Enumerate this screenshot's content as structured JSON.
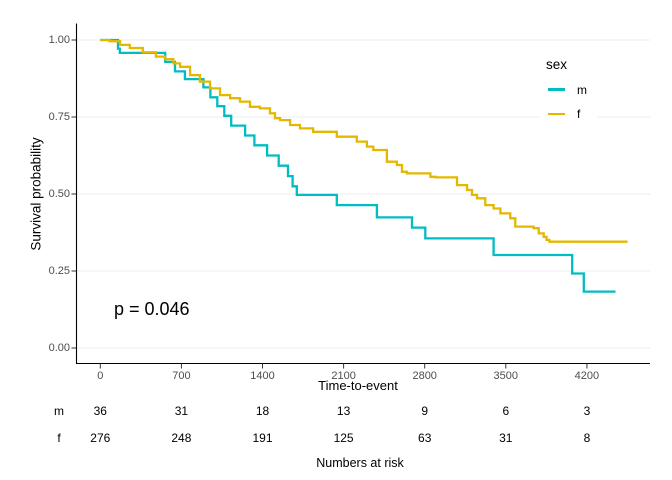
{
  "colors": {
    "axis_text": "#4d4d4d",
    "text": "#000000",
    "gridline": "#ececec",
    "axis_line": "#000000",
    "tick_mark": "#333333"
  },
  "chart_data": {
    "type": "line",
    "subtype": "kaplan_meier_step_curves",
    "title": "",
    "xlabel": "Time-to-event",
    "ylabel": "Survival probability",
    "annotation_p_value": "p = 0.046",
    "xlim": [
      0,
      4750
    ],
    "ylim": [
      0,
      1
    ],
    "grid": "horizontal major gridlines only",
    "legend": {
      "title": "sex",
      "position": "right"
    },
    "xticks": [
      {
        "value": 0,
        "label": "0"
      },
      {
        "value": 700,
        "label": "700"
      },
      {
        "value": 1400,
        "label": "1400"
      },
      {
        "value": 2100,
        "label": "2100"
      },
      {
        "value": 2800,
        "label": "2800"
      },
      {
        "value": 3500,
        "label": "3500"
      },
      {
        "value": 4200,
        "label": "4200"
      }
    ],
    "yticks": [
      {
        "value": 0,
        "label": "0.00"
      },
      {
        "value": 0.25,
        "label": "0.25"
      },
      {
        "value": 0.5,
        "label": "0.50"
      },
      {
        "value": 0.75,
        "label": "0.75"
      },
      {
        "value": 1,
        "label": "1.00"
      }
    ],
    "series": [
      {
        "name": "m",
        "color": "#00BCC3",
        "end_time": 4447,
        "steps": [
          [
            0,
            1.0
          ],
          [
            153,
            0.972
          ],
          [
            168,
            0.958
          ],
          [
            560,
            0.929
          ],
          [
            645,
            0.898
          ],
          [
            730,
            0.873
          ],
          [
            890,
            0.846
          ],
          [
            950,
            0.814
          ],
          [
            1010,
            0.785
          ],
          [
            1070,
            0.754
          ],
          [
            1130,
            0.722
          ],
          [
            1250,
            0.69
          ],
          [
            1330,
            0.658
          ],
          [
            1440,
            0.625
          ],
          [
            1540,
            0.592
          ],
          [
            1620,
            0.558
          ],
          [
            1660,
            0.525
          ],
          [
            1696,
            0.497
          ],
          [
            2041,
            0.464
          ],
          [
            2387,
            0.424
          ],
          [
            2690,
            0.391
          ],
          [
            2805,
            0.356
          ],
          [
            3395,
            0.302
          ],
          [
            4073,
            0.242
          ],
          [
            4173,
            0.183
          ]
        ]
      },
      {
        "name": "f",
        "color": "#E5B800",
        "end_time": 4551,
        "steps": [
          [
            0,
            1.0
          ],
          [
            80,
            0.996
          ],
          [
            170,
            0.984
          ],
          [
            255,
            0.974
          ],
          [
            367,
            0.96
          ],
          [
            480,
            0.946
          ],
          [
            558,
            0.938
          ],
          [
            630,
            0.924
          ],
          [
            689,
            0.913
          ],
          [
            775,
            0.886
          ],
          [
            860,
            0.865
          ],
          [
            947,
            0.843
          ],
          [
            1033,
            0.821
          ],
          [
            1120,
            0.811
          ],
          [
            1206,
            0.8
          ],
          [
            1292,
            0.783
          ],
          [
            1378,
            0.778
          ],
          [
            1465,
            0.762
          ],
          [
            1508,
            0.746
          ],
          [
            1551,
            0.74
          ],
          [
            1638,
            0.724
          ],
          [
            1724,
            0.713
          ],
          [
            1837,
            0.702
          ],
          [
            2041,
            0.686
          ],
          [
            2214,
            0.67
          ],
          [
            2301,
            0.654
          ],
          [
            2356,
            0.643
          ],
          [
            2474,
            0.605
          ],
          [
            2560,
            0.594
          ],
          [
            2604,
            0.572
          ],
          [
            2647,
            0.567
          ],
          [
            2849,
            0.556
          ],
          [
            2895,
            0.554
          ],
          [
            3079,
            0.529
          ],
          [
            3166,
            0.513
          ],
          [
            3208,
            0.497
          ],
          [
            3251,
            0.486
          ],
          [
            3323,
            0.464
          ],
          [
            3395,
            0.453
          ],
          [
            3453,
            0.437
          ],
          [
            3539,
            0.421
          ],
          [
            3582,
            0.394
          ],
          [
            3740,
            0.389
          ],
          [
            3784,
            0.372
          ],
          [
            3827,
            0.361
          ],
          [
            3851,
            0.351
          ],
          [
            3876,
            0.345
          ]
        ]
      }
    ],
    "risk_table": {
      "caption": "Numbers at risk",
      "times": [
        0,
        700,
        1400,
        2100,
        2800,
        3500,
        4200
      ],
      "rows": [
        {
          "label": "m",
          "counts": [
            36,
            31,
            18,
            13,
            9,
            6,
            3
          ]
        },
        {
          "label": "f",
          "counts": [
            276,
            248,
            191,
            125,
            63,
            31,
            8
          ]
        }
      ]
    }
  }
}
